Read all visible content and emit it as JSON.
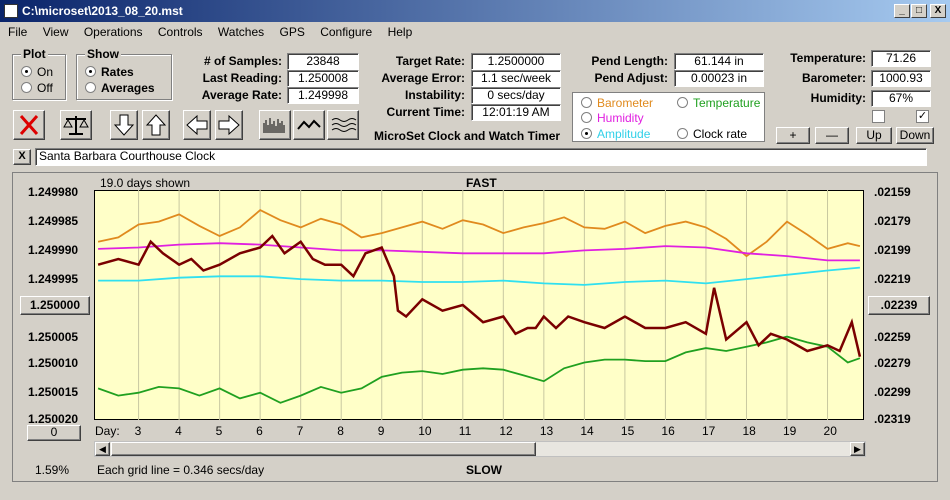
{
  "window": {
    "title": "C:\\microset\\2013_08_20.mst",
    "min": "_",
    "max": "□",
    "close": "X"
  },
  "menu": [
    "File",
    "View",
    "Operations",
    "Controls",
    "Watches",
    "GPS",
    "Configure",
    "Help"
  ],
  "plot_group": {
    "title": "Plot",
    "on": "On",
    "off": "Off",
    "selected": "On"
  },
  "show_group": {
    "title": "Show",
    "rates": "Rates",
    "averages": "Averages",
    "selected": "Rates"
  },
  "stats": {
    "samples_label": "# of Samples:",
    "samples": "23848",
    "last_label": "Last Reading:",
    "last": "1.250008",
    "avg_label": "Average Rate:",
    "avg": "1.249998"
  },
  "target": {
    "rate_label": "Target Rate:",
    "rate": "1.2500000",
    "error_label": "Average Error:",
    "error": "1.1 sec/week",
    "instab_label": "Instability:",
    "instab": "0 secs/day",
    "time_label": "Current Time:",
    "time": "12:01:19 AM"
  },
  "product_name": "MicroSet Clock and Watch Timer",
  "pend": {
    "length_label": "Pend Length:",
    "length": "61.144 in",
    "adjust_label": "Pend Adjust:",
    "adjust": "0.00023 in"
  },
  "sensors": {
    "temp_label": "Temperature:",
    "temp": "71.26",
    "baro_label": "Barometer:",
    "baro": "1000.93",
    "hum_label": "Humidity:",
    "hum": "67%"
  },
  "series_select": {
    "barometer": "Barometer",
    "temperature": "Temperature",
    "humidity": "Humidity",
    "amplitude": "Amplitude",
    "clock_rate": "Clock rate",
    "selected": "Amplitude"
  },
  "adjust_buttons": {
    "plus": "+",
    "minus": "—",
    "up": "Up",
    "down": "Down"
  },
  "description": {
    "close": "X",
    "value": "Santa Barbara Courthouse Clock"
  },
  "chart_header": {
    "days_shown": "19.0 days shown",
    "fast": "FAST",
    "slow": "SLOW",
    "grid_note": "Each grid line = 0.346 secs/day",
    "pct": "1.59%",
    "day_label": "Day:",
    "zero_btn": "0",
    "center_left": "1.250000",
    "center_right": ".02239"
  },
  "colors": {
    "plot_bg": "#ffffc8",
    "rate": "#7a0000",
    "barometer": "#e08a1e",
    "humidity": "#e020e0",
    "amplitude": "#30e0f0",
    "temperature": "#20a020"
  },
  "chart_data": {
    "type": "line",
    "x_label": "Day",
    "xlim": [
      1.9,
      20.9
    ],
    "x_ticks": [
      3,
      4,
      5,
      6,
      7,
      8,
      9,
      10,
      11,
      12,
      13,
      14,
      15,
      16,
      17,
      18,
      19,
      20
    ],
    "left_axis": {
      "ylim": [
        1.24998,
        1.25002
      ],
      "ticks": [
        "1.249980",
        "1.249985",
        "1.249990",
        "1.249995",
        "1.250000",
        "1.250005",
        "1.250010",
        "1.250015",
        "1.250020"
      ],
      "inverted": true
    },
    "right_axis": {
      "ylim": [
        0.02159,
        0.02319
      ],
      "ticks": [
        ".02159",
        ".02179",
        ".02199",
        ".02219",
        ".02239",
        ".02259",
        ".02279",
        ".02299",
        ".02319"
      ]
    },
    "series": [
      {
        "name": "Clock rate",
        "axis": "left",
        "x": [
          2,
          2.5,
          3,
          3.3,
          3.6,
          4,
          4.3,
          4.6,
          5,
          5.5,
          6,
          6.3,
          6.6,
          7,
          7.3,
          7.6,
          8,
          8.3,
          8.6,
          9,
          9.3,
          9.4,
          9.6,
          10,
          10.5,
          11,
          11.5,
          12,
          12.3,
          12.6,
          12.8,
          13,
          13.3,
          13.6,
          14,
          14.5,
          15,
          15.5,
          16,
          16.5,
          17,
          17.2,
          17.5,
          18,
          18.3,
          18.6,
          19,
          19.5,
          20,
          20.3,
          20.6,
          20.8
        ],
        "values": [
          1.249993,
          1.249992,
          1.249993,
          1.249989,
          1.249991,
          1.249993,
          1.249992,
          1.249994,
          1.249993,
          1.249991,
          1.24999,
          1.249988,
          1.249991,
          1.249989,
          1.249992,
          1.249993,
          1.249993,
          1.249995,
          1.249991,
          1.24999,
          1.249995,
          1.250001,
          1.250002,
          1.249999,
          1.250001,
          1.25,
          1.250003,
          1.250002,
          1.250005,
          1.250004,
          1.250004,
          1.250002,
          1.250004,
          1.250002,
          1.250003,
          1.250004,
          1.250002,
          1.250004,
          1.250004,
          1.250003,
          1.250005,
          1.249997,
          1.250006,
          1.250003,
          1.250007,
          1.250005,
          1.250006,
          1.250008,
          1.250007,
          1.250008,
          1.250003,
          1.250009
        ]
      },
      {
        "name": "Barometer",
        "axis": "right",
        "x": [
          2,
          2.5,
          3,
          3.5,
          4,
          4.5,
          5,
          5.5,
          6,
          6.5,
          7,
          7.5,
          8,
          8.5,
          9,
          9.5,
          10,
          10.5,
          11,
          11.5,
          12,
          12.5,
          13,
          13.5,
          14,
          14.5,
          15,
          15.5,
          16,
          16.5,
          17,
          17.5,
          18,
          18.5,
          19,
          19.5,
          20,
          20.5,
          20.8
        ],
        "values": [
          0.02195,
          0.02192,
          0.02183,
          0.02181,
          0.02176,
          0.02184,
          0.02191,
          0.02185,
          0.02173,
          0.0218,
          0.02185,
          0.02179,
          0.02183,
          0.02192,
          0.02189,
          0.02185,
          0.02181,
          0.02186,
          0.0218,
          0.02183,
          0.02189,
          0.02185,
          0.02182,
          0.02178,
          0.02185,
          0.02186,
          0.02181,
          0.02189,
          0.02184,
          0.02181,
          0.02185,
          0.02193,
          0.02205,
          0.02195,
          0.02181,
          0.0219,
          0.022,
          0.02196,
          0.02198
        ]
      },
      {
        "name": "Humidity",
        "axis": "right",
        "x": [
          2,
          3,
          4,
          5,
          6,
          7,
          8,
          9,
          10,
          11,
          12,
          13,
          14,
          15,
          16,
          17,
          18,
          19,
          20,
          20.8
        ],
        "values": [
          0.022,
          0.02199,
          0.02197,
          0.02196,
          0.02197,
          0.02199,
          0.02201,
          0.02201,
          0.02202,
          0.02203,
          0.02203,
          0.02203,
          0.02201,
          0.022,
          0.02198,
          0.02199,
          0.02203,
          0.02205,
          0.02208,
          0.02208
        ]
      },
      {
        "name": "Amplitude",
        "axis": "right",
        "x": [
          2,
          3,
          4,
          5,
          6,
          7,
          8,
          9,
          10,
          11,
          12,
          13,
          14,
          15,
          16,
          17,
          18,
          19,
          20,
          20.8
        ],
        "values": [
          0.02222,
          0.02222,
          0.0222,
          0.02219,
          0.02219,
          0.02221,
          0.02222,
          0.02222,
          0.02223,
          0.02223,
          0.02222,
          0.02224,
          0.02225,
          0.02223,
          0.02222,
          0.02224,
          0.02221,
          0.02218,
          0.02215,
          0.02213
        ]
      },
      {
        "name": "Temperature",
        "axis": "right",
        "x": [
          2,
          2.5,
          3,
          3.5,
          4,
          4.5,
          5,
          5.5,
          6,
          6.5,
          7,
          7.5,
          8,
          8.5,
          9,
          9.5,
          10,
          10.5,
          11,
          11.5,
          12,
          12.5,
          13,
          13.5,
          14,
          14.5,
          15,
          15.5,
          16,
          16.5,
          17,
          17.5,
          18,
          18.5,
          19,
          19.5,
          20,
          20.5,
          20.8
        ],
        "values": [
          0.02297,
          0.02302,
          0.023,
          0.02296,
          0.02297,
          0.02302,
          0.02297,
          0.02304,
          0.023,
          0.02307,
          0.02302,
          0.02296,
          0.023,
          0.02297,
          0.02289,
          0.02286,
          0.02285,
          0.02287,
          0.02284,
          0.02283,
          0.02284,
          0.02288,
          0.02292,
          0.02283,
          0.02279,
          0.02277,
          0.02277,
          0.02278,
          0.02278,
          0.02272,
          0.02269,
          0.02271,
          0.02268,
          0.02265,
          0.02261,
          0.02265,
          0.02268,
          0.02279,
          0.02276
        ]
      }
    ]
  }
}
